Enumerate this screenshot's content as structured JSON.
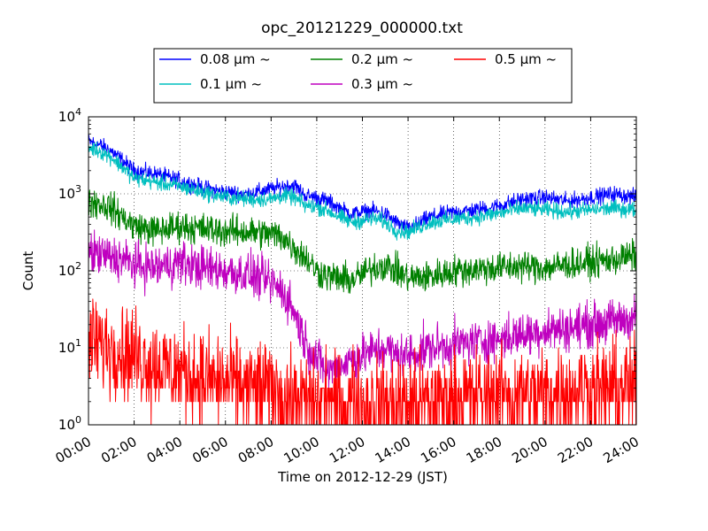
{
  "chart_data": {
    "type": "line",
    "title": "opc_20121229_000000.txt",
    "xlabel": "Time on 2012-12-29 (JST)",
    "ylabel": "Count",
    "y_scale": "log",
    "ylim": [
      1,
      10000
    ],
    "xlim": [
      "00:00",
      "24:00"
    ],
    "grid": true,
    "legend_position": "top-center, above plot",
    "x_ticks": [
      "00:00",
      "02:00",
      "04:00",
      "06:00",
      "08:00",
      "10:00",
      "12:00",
      "14:00",
      "16:00",
      "18:00",
      "20:00",
      "22:00",
      "24:00"
    ],
    "y_ticks": [
      {
        "base": "10",
        "exp": "0"
      },
      {
        "base": "10",
        "exp": "1"
      },
      {
        "base": "10",
        "exp": "2"
      },
      {
        "base": "10",
        "exp": "3"
      },
      {
        "base": "10",
        "exp": "4"
      }
    ],
    "x_hours": [
      0,
      0.5,
      1,
      1.5,
      2,
      3,
      4,
      5,
      6,
      7,
      8,
      8.5,
      9,
      9.5,
      10,
      10.5,
      11,
      11.5,
      12,
      12.5,
      13,
      13.5,
      14,
      15,
      16,
      17,
      18,
      19,
      20,
      21,
      22,
      23,
      24
    ],
    "series": [
      {
        "name": "0.08 μm ~",
        "color": "#0000ff",
        "noise": 0.05,
        "values": [
          4800,
          4300,
          3600,
          2700,
          2000,
          1800,
          1500,
          1200,
          1050,
          1000,
          1150,
          1250,
          1300,
          950,
          900,
          800,
          650,
          550,
          580,
          600,
          550,
          420,
          350,
          500,
          580,
          620,
          700,
          850,
          900,
          800,
          900,
          1000,
          900
        ]
      },
      {
        "name": "0.1 μm ~",
        "color": "#00bfbf",
        "noise": 0.05,
        "values": [
          4000,
          3600,
          3000,
          2200,
          1600,
          1400,
          1250,
          1050,
          900,
          850,
          850,
          950,
          900,
          700,
          680,
          600,
          500,
          430,
          450,
          480,
          430,
          330,
          320,
          430,
          470,
          500,
          560,
          650,
          620,
          580,
          620,
          650,
          620
        ]
      },
      {
        "name": "0.2 μm ~",
        "color": "#008000",
        "noise": 0.1,
        "values": [
          800,
          750,
          650,
          500,
          380,
          330,
          380,
          350,
          330,
          320,
          300,
          280,
          200,
          150,
          100,
          85,
          80,
          75,
          90,
          110,
          120,
          100,
          80,
          85,
          100,
          105,
          110,
          115,
          110,
          120,
          130,
          140,
          160
        ]
      },
      {
        "name": "0.3 μm ~",
        "color": "#bf00bf",
        "noise": 0.14,
        "values": [
          170,
          160,
          150,
          140,
          120,
          110,
          130,
          110,
          100,
          90,
          70,
          55,
          30,
          12,
          7,
          5,
          6,
          7,
          8,
          9,
          10,
          8,
          8,
          10,
          11,
          12,
          13,
          15,
          17,
          18,
          20,
          22,
          25
        ]
      },
      {
        "name": "0.5 μm ~",
        "color": "#ff0000",
        "noise": 0.3,
        "values": [
          12,
          11,
          10,
          9,
          8,
          6,
          5,
          4,
          3.5,
          3,
          3,
          2.5,
          2,
          2,
          2,
          2,
          2,
          2,
          2,
          2,
          2,
          2,
          2,
          2,
          2.2,
          2.4,
          2.5,
          2.5,
          2.5,
          2.8,
          3,
          3,
          3.2
        ]
      }
    ]
  }
}
